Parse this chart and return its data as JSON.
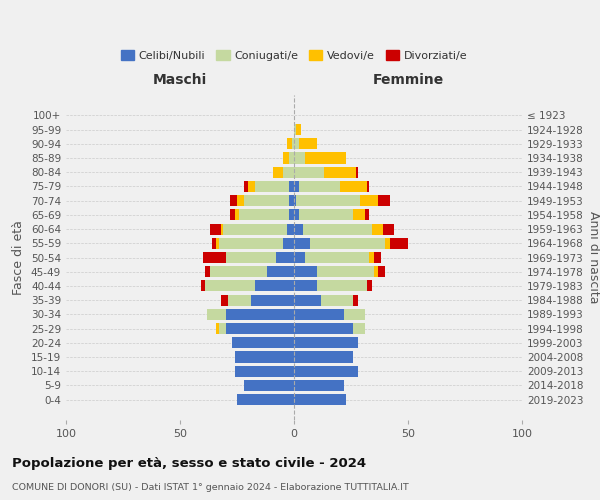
{
  "age_groups": [
    "0-4",
    "5-9",
    "10-14",
    "15-19",
    "20-24",
    "25-29",
    "30-34",
    "35-39",
    "40-44",
    "45-49",
    "50-54",
    "55-59",
    "60-64",
    "65-69",
    "70-74",
    "75-79",
    "80-84",
    "85-89",
    "90-94",
    "95-99",
    "100+"
  ],
  "birth_years": [
    "2019-2023",
    "2014-2018",
    "2009-2013",
    "2004-2008",
    "1999-2003",
    "1994-1998",
    "1989-1993",
    "1984-1988",
    "1979-1983",
    "1974-1978",
    "1969-1973",
    "1964-1968",
    "1959-1963",
    "1954-1958",
    "1949-1953",
    "1944-1948",
    "1939-1943",
    "1934-1938",
    "1929-1933",
    "1924-1928",
    "≤ 1923"
  ],
  "males": {
    "celibi": [
      25,
      22,
      26,
      26,
      27,
      30,
      30,
      19,
      17,
      12,
      8,
      5,
      3,
      2,
      2,
      2,
      0,
      0,
      0,
      0,
      0
    ],
    "coniugati": [
      0,
      0,
      0,
      0,
      0,
      3,
      8,
      10,
      22,
      25,
      22,
      28,
      28,
      22,
      20,
      15,
      5,
      2,
      1,
      0,
      0
    ],
    "vedovi": [
      0,
      0,
      0,
      0,
      0,
      1,
      0,
      0,
      0,
      0,
      0,
      1,
      1,
      2,
      3,
      3,
      4,
      3,
      2,
      0,
      0
    ],
    "divorziati": [
      0,
      0,
      0,
      0,
      0,
      0,
      0,
      3,
      2,
      2,
      10,
      2,
      5,
      2,
      3,
      2,
      0,
      0,
      0,
      0,
      0
    ]
  },
  "females": {
    "nubili": [
      23,
      22,
      28,
      26,
      28,
      26,
      22,
      12,
      10,
      10,
      5,
      7,
      4,
      2,
      1,
      2,
      0,
      0,
      0,
      0,
      0
    ],
    "coniugate": [
      0,
      0,
      0,
      0,
      0,
      5,
      9,
      14,
      22,
      25,
      28,
      33,
      30,
      24,
      28,
      18,
      13,
      5,
      2,
      1,
      0
    ],
    "vedove": [
      0,
      0,
      0,
      0,
      0,
      0,
      0,
      0,
      0,
      2,
      2,
      2,
      5,
      5,
      8,
      12,
      14,
      18,
      8,
      2,
      0
    ],
    "divorziate": [
      0,
      0,
      0,
      0,
      0,
      0,
      0,
      2,
      2,
      3,
      3,
      8,
      5,
      2,
      5,
      1,
      1,
      0,
      0,
      0,
      0
    ]
  },
  "color_celibi": "#4472c4",
  "color_coniugati": "#c5d9a0",
  "color_vedovi": "#ffc000",
  "color_divorziati": "#cc0000",
  "title": "Popolazione per età, sesso e stato civile - 2024",
  "subtitle": "COMUNE DI DONORI (SU) - Dati ISTAT 1° gennaio 2024 - Elaborazione TUTTITALIA.IT",
  "xlabel_left": "Maschi",
  "xlabel_right": "Femmine",
  "ylabel_left": "Fasce di età",
  "ylabel_right": "Anni di nascita",
  "xlim": 100,
  "legend_labels": [
    "Celibi/Nubili",
    "Coniugati/e",
    "Vedovi/e",
    "Divorziati/e"
  ],
  "background_color": "#f0f0f0"
}
